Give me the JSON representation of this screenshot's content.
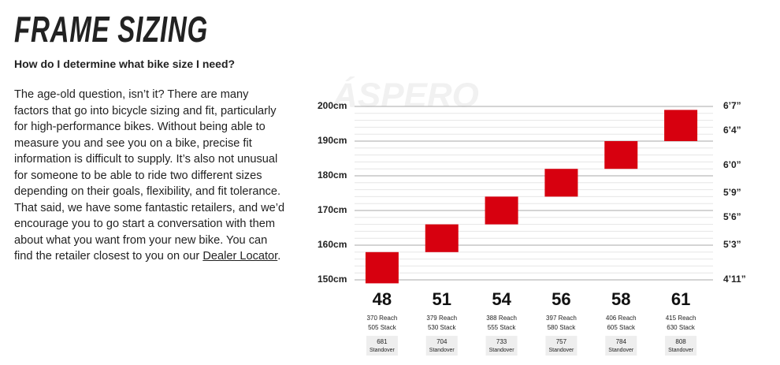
{
  "header": {
    "title": "FRAME SIZING",
    "question": "How do I determine what bike size I need?"
  },
  "body": {
    "text": "The age-old question, isn’t it? There are many factors that go into bicycle sizing and fit, particularly for high-performance bikes. Without being able to measure you and see you on a bike, precise fit information is difficult to supply. It’s also not unusual for someone to be able to ride two different sizes depending on their goals, flexibility, and fit tolerance. That said, we have some fantastic retailers, and we’d encourage you to go start a conversation with them about what you want from your new bike. You can find the retailer closest to you on our ",
    "link": "Dealer Locator",
    "end": "."
  },
  "chart_data": {
    "type": "range-bar",
    "watermark": "ÁSPERO",
    "categories": [
      "48",
      "51",
      "54",
      "56",
      "58",
      "61"
    ],
    "low": [
      149,
      158,
      166,
      174,
      182,
      190
    ],
    "high": [
      158,
      166,
      174,
      182,
      190,
      199
    ],
    "color": "#d7000f",
    "reach": [
      370,
      379,
      388,
      397,
      406,
      415
    ],
    "reach_label": "Reach",
    "stack": [
      505,
      530,
      555,
      580,
      605,
      630
    ],
    "stack_label": "Stack",
    "standover": [
      681,
      704,
      733,
      757,
      784,
      808
    ],
    "standover_label": "Standover",
    "ylim": [
      150,
      200
    ],
    "yticks": [
      {
        "value": 200,
        "label": "200cm"
      },
      {
        "value": 190,
        "label": "190cm"
      },
      {
        "value": 180,
        "label": "180cm"
      },
      {
        "value": 170,
        "label": "170cm"
      },
      {
        "value": 160,
        "label": "160cm"
      },
      {
        "value": 150,
        "label": "150cm"
      }
    ],
    "y2lim": [
      150,
      200
    ],
    "y2ticks": [
      {
        "value": 200,
        "label": "6’7”"
      },
      {
        "value": 193,
        "label": "6’4”"
      },
      {
        "value": 183,
        "label": "6’0”"
      },
      {
        "value": 175,
        "label": "5’9”"
      },
      {
        "value": 168,
        "label": "5’6”"
      },
      {
        "value": 160,
        "label": "5’3”"
      },
      {
        "value": 150,
        "label": "4’11”"
      }
    ],
    "grid": true,
    "minor_grid_step": 2
  }
}
